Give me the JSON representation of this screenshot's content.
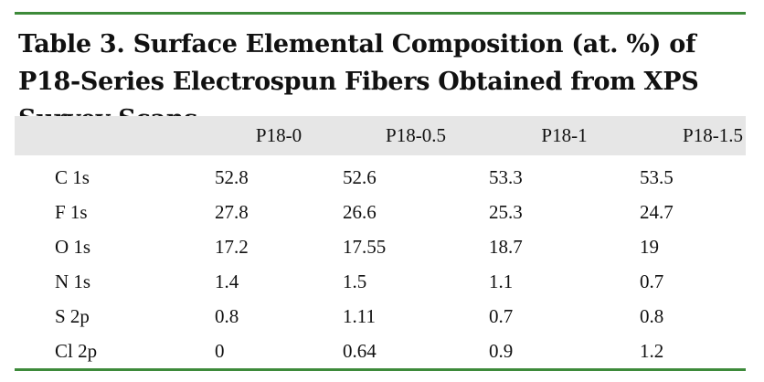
{
  "title": "Table 3. Surface Elemental Composition (at. %) of P18-Series Electrospun Fibers Obtained from XPS Survey Scans",
  "colors": {
    "rule": "#3d8a3a",
    "header_band": "#e6e6e6"
  },
  "columns": [
    "",
    "P18-0",
    "P18-0.5",
    "P18-1",
    "P18-1.5"
  ],
  "rows": [
    {
      "label": "C 1s",
      "values": [
        "52.8",
        "52.6",
        "53.3",
        "53.5"
      ]
    },
    {
      "label": "F 1s",
      "values": [
        "27.8",
        "26.6",
        "25.3",
        "24.7"
      ]
    },
    {
      "label": "O 1s",
      "values": [
        "17.2",
        "17.55",
        "18.7",
        "19"
      ]
    },
    {
      "label": "N 1s",
      "values": [
        "1.4",
        "1.5",
        "1.1",
        "0.7"
      ]
    },
    {
      "label": "S 2p",
      "values": [
        "0.8",
        "1.11",
        "0.7",
        "0.8"
      ]
    },
    {
      "label": "Cl 2p",
      "values": [
        "0",
        "0.64",
        "0.9",
        "1.2"
      ]
    }
  ]
}
